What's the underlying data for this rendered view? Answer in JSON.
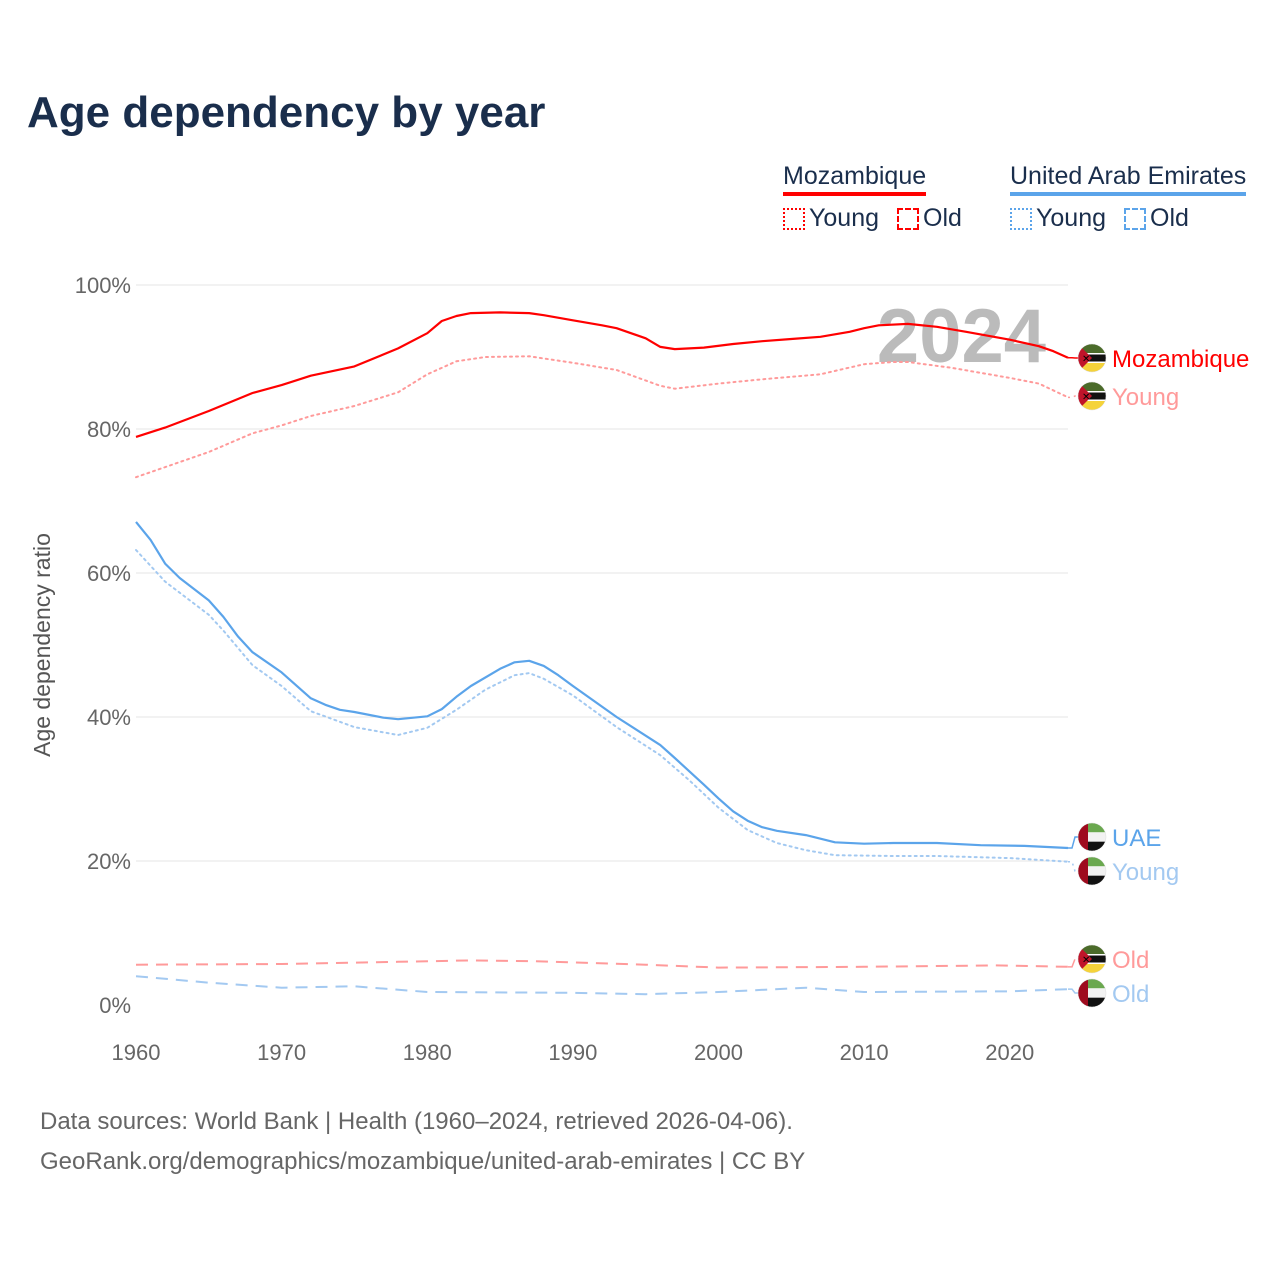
{
  "title": "Age dependency by year",
  "legend": [
    {
      "country": "Mozambique",
      "color": "#ff0000",
      "items": [
        {
          "label": "Young",
          "style": "dotted"
        },
        {
          "label": "Old",
          "style": "dashed"
        }
      ]
    },
    {
      "country": "United Arab Emirates",
      "color": "#5ba4ea",
      "items": [
        {
          "label": "Young",
          "style": "dotted"
        },
        {
          "label": "Old",
          "style": "dashed"
        }
      ]
    }
  ],
  "footer": {
    "line1": "Data sources: World Bank | Health (1960–2024, retrieved 2026-04-06).",
    "line2": "GeoRank.org/demographics/mozambique/united-arab-emirates | CC BY"
  },
  "chart_data": {
    "type": "line",
    "title": "Age dependency by year",
    "xlabel": "",
    "ylabel": "Age dependency ratio",
    "xlim": [
      1960,
      2024
    ],
    "ylim": [
      0,
      100
    ],
    "xticks": [
      "1960",
      "1970",
      "1980",
      "1990",
      "2000",
      "2010",
      "2020"
    ],
    "yticks": [
      "0%",
      "20%",
      "40%",
      "60%",
      "80%",
      "100%"
    ],
    "year_annotation": "2024",
    "grid": true,
    "legend_position": "top-right",
    "series": [
      {
        "name": "Mozambique",
        "end_label": "Mozambique",
        "color": "#ff0000",
        "style": "solid",
        "flag": "mozambique",
        "points": [
          [
            1960,
            78.9
          ],
          [
            1962,
            80.2
          ],
          [
            1965,
            82.5
          ],
          [
            1968,
            85
          ],
          [
            1970,
            86.1
          ],
          [
            1972,
            87.4
          ],
          [
            1975,
            88.7
          ],
          [
            1978,
            91.2
          ],
          [
            1980,
            93.3
          ],
          [
            1981,
            95
          ],
          [
            1982,
            95.7
          ],
          [
            1983,
            96.1
          ],
          [
            1985,
            96.2
          ],
          [
            1987,
            96.1
          ],
          [
            1988,
            95.8
          ],
          [
            1990,
            95.1
          ],
          [
            1992,
            94.4
          ],
          [
            1993,
            94
          ],
          [
            1995,
            92.6
          ],
          [
            1996,
            91.4
          ],
          [
            1997,
            91.1
          ],
          [
            1999,
            91.3
          ],
          [
            2001,
            91.8
          ],
          [
            2003,
            92.2
          ],
          [
            2005,
            92.5
          ],
          [
            2007,
            92.8
          ],
          [
            2009,
            93.5
          ],
          [
            2010,
            94
          ],
          [
            2011,
            94.4
          ],
          [
            2013,
            94.6
          ],
          [
            2015,
            94.2
          ],
          [
            2017,
            93.5
          ],
          [
            2020,
            92.4
          ],
          [
            2022,
            91.5
          ],
          [
            2023,
            90.8
          ],
          [
            2024,
            89.9
          ]
        ]
      },
      {
        "name": "Mozambique Young",
        "end_label": "Young",
        "color": "#ff9a9a",
        "style": "dotted",
        "flag": "mozambique",
        "points": [
          [
            1960,
            73.3
          ],
          [
            1965,
            76.8
          ],
          [
            1968,
            79.4
          ],
          [
            1970,
            80.5
          ],
          [
            1972,
            81.8
          ],
          [
            1975,
            83.2
          ],
          [
            1978,
            85.1
          ],
          [
            1980,
            87.6
          ],
          [
            1982,
            89.4
          ],
          [
            1984,
            90
          ],
          [
            1987,
            90.1
          ],
          [
            1990,
            89.2
          ],
          [
            1993,
            88.2
          ],
          [
            1996,
            86
          ],
          [
            1997,
            85.6
          ],
          [
            2000,
            86.3
          ],
          [
            2003,
            86.9
          ],
          [
            2007,
            87.6
          ],
          [
            2010,
            89
          ],
          [
            2012,
            89.3
          ],
          [
            2013,
            89.3
          ],
          [
            2016,
            88.5
          ],
          [
            2020,
            87.1
          ],
          [
            2022,
            86.3
          ],
          [
            2024,
            84.4
          ]
        ]
      },
      {
        "name": "UAE",
        "end_label": "UAE",
        "color": "#5ba4ea",
        "style": "solid",
        "flag": "uae",
        "points": [
          [
            1960,
            67.1
          ],
          [
            1961,
            64.6
          ],
          [
            1962,
            61.3
          ],
          [
            1963,
            59.3
          ],
          [
            1965,
            56.2
          ],
          [
            1966,
            53.9
          ],
          [
            1967,
            51.2
          ],
          [
            1968,
            49
          ],
          [
            1970,
            46.2
          ],
          [
            1972,
            42.6
          ],
          [
            1973,
            41.7
          ],
          [
            1974,
            41
          ],
          [
            1975,
            40.7
          ],
          [
            1977,
            39.9
          ],
          [
            1978,
            39.7
          ],
          [
            1980,
            40.1
          ],
          [
            1981,
            41.1
          ],
          [
            1982,
            42.8
          ],
          [
            1983,
            44.3
          ],
          [
            1985,
            46.7
          ],
          [
            1986,
            47.6
          ],
          [
            1987,
            47.8
          ],
          [
            1988,
            47.1
          ],
          [
            1989,
            45.8
          ],
          [
            1990,
            44.3
          ],
          [
            1993,
            40
          ],
          [
            1996,
            36.1
          ],
          [
            1997,
            34.3
          ],
          [
            1999,
            30.6
          ],
          [
            2000,
            28.7
          ],
          [
            2001,
            26.9
          ],
          [
            2002,
            25.6
          ],
          [
            2003,
            24.7
          ],
          [
            2004,
            24.2
          ],
          [
            2006,
            23.6
          ],
          [
            2008,
            22.6
          ],
          [
            2010,
            22.4
          ],
          [
            2012,
            22.5
          ],
          [
            2015,
            22.5
          ],
          [
            2018,
            22.2
          ],
          [
            2021,
            22.1
          ],
          [
            2024,
            21.8
          ]
        ]
      },
      {
        "name": "UAE Young",
        "end_label": "Young",
        "color": "#a3c9f1",
        "style": "dotted",
        "flag": "uae",
        "points": [
          [
            1960,
            63.2
          ],
          [
            1962,
            58.8
          ],
          [
            1965,
            54.2
          ],
          [
            1966,
            52
          ],
          [
            1968,
            47.2
          ],
          [
            1970,
            44.3
          ],
          [
            1972,
            40.8
          ],
          [
            1975,
            38.6
          ],
          [
            1978,
            37.5
          ],
          [
            1980,
            38.5
          ],
          [
            1982,
            41
          ],
          [
            1984,
            43.8
          ],
          [
            1986,
            45.8
          ],
          [
            1987,
            46.1
          ],
          [
            1988,
            45.3
          ],
          [
            1990,
            43
          ],
          [
            1993,
            38.6
          ],
          [
            1996,
            34.7
          ],
          [
            1998,
            31.2
          ],
          [
            2000,
            27.4
          ],
          [
            2002,
            24.3
          ],
          [
            2004,
            22.5
          ],
          [
            2006,
            21.5
          ],
          [
            2008,
            20.8
          ],
          [
            2012,
            20.7
          ],
          [
            2015,
            20.7
          ],
          [
            2020,
            20.4
          ],
          [
            2024,
            19.9
          ]
        ]
      },
      {
        "name": "Mozambique Old",
        "end_label": "Old",
        "color": "#ff9a9a",
        "style": "dashed",
        "flag": "mozambique",
        "points": [
          [
            1960,
            5.6
          ],
          [
            1970,
            5.7
          ],
          [
            1978,
            6
          ],
          [
            1983,
            6.2
          ],
          [
            1987,
            6.1
          ],
          [
            1995,
            5.6
          ],
          [
            2000,
            5.2
          ],
          [
            2010,
            5.3
          ],
          [
            2019,
            5.5
          ],
          [
            2024,
            5.3
          ]
        ]
      },
      {
        "name": "UAE Old",
        "end_label": "Old",
        "color": "#a3c9f1",
        "style": "dashed",
        "flag": "uae",
        "points": [
          [
            1960,
            4
          ],
          [
            1965,
            3.1
          ],
          [
            1970,
            2.4
          ],
          [
            1975,
            2.6
          ],
          [
            1980,
            1.8
          ],
          [
            1990,
            1.7
          ],
          [
            1995,
            1.5
          ],
          [
            2000,
            1.8
          ],
          [
            2006,
            2.4
          ],
          [
            2010,
            1.8
          ],
          [
            2020,
            1.9
          ],
          [
            2024,
            2.2
          ]
        ]
      }
    ]
  }
}
